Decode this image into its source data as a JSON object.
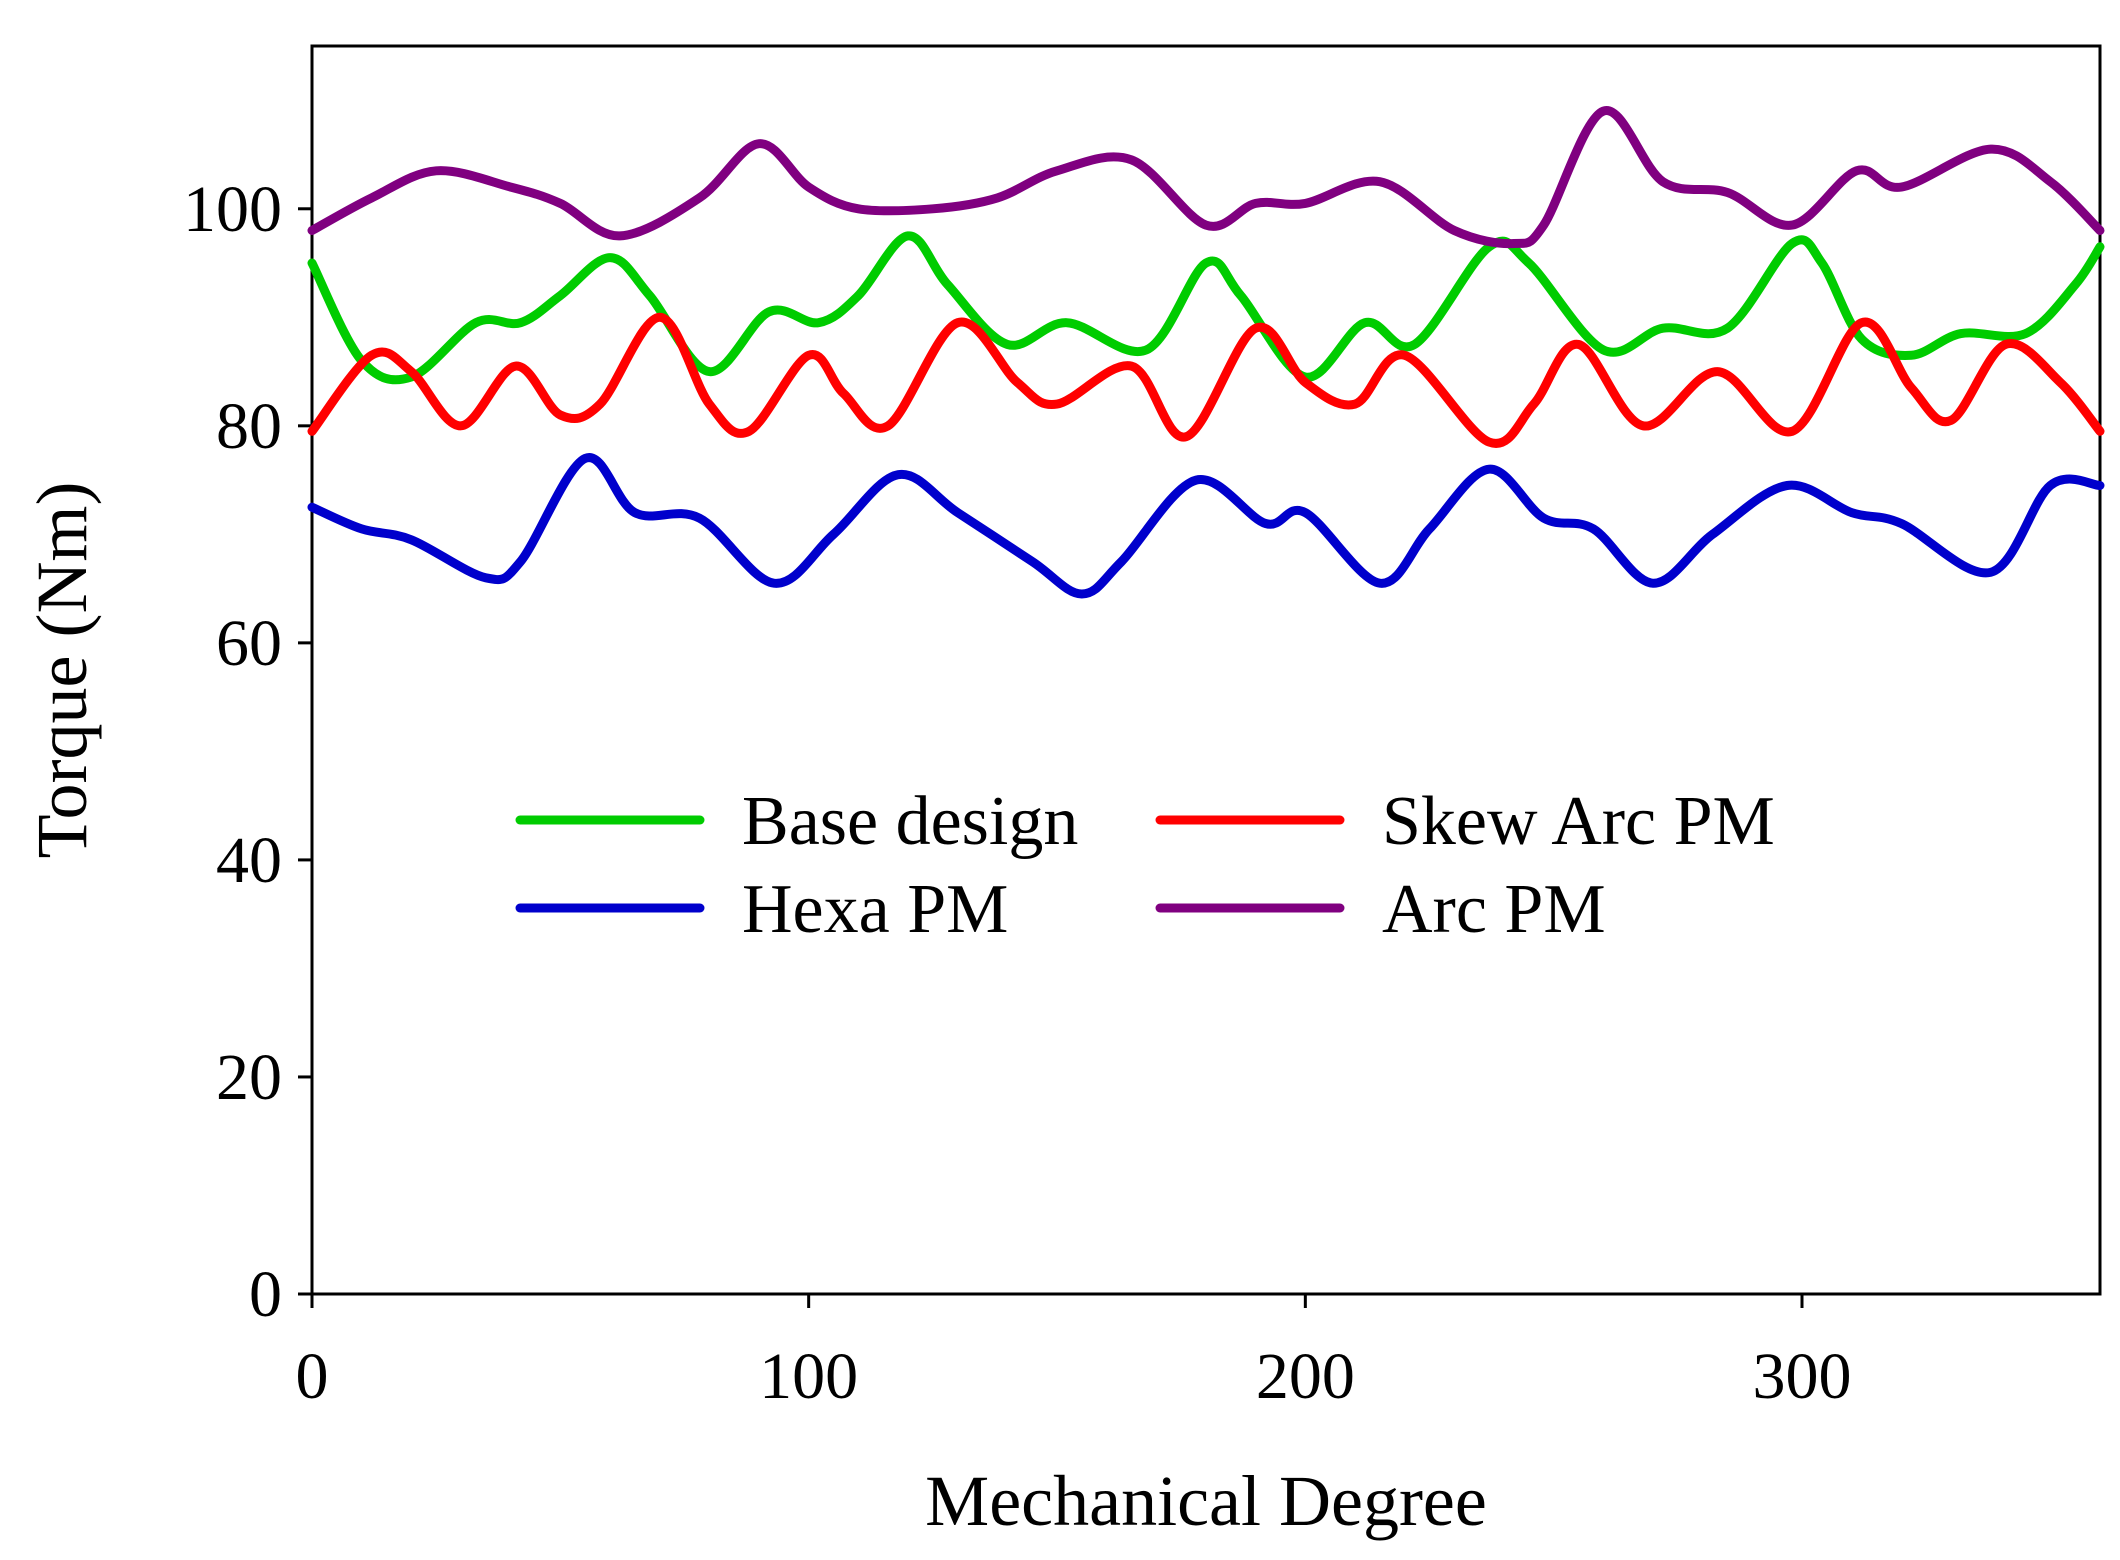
{
  "chart_data": {
    "type": "line",
    "title": "",
    "xlabel": "Mechanical Degree",
    "ylabel": "Torque (Nm)",
    "xlim": [
      0,
      360
    ],
    "ylim": [
      0,
      115
    ],
    "xticks": [
      0,
      100,
      200,
      300
    ],
    "yticks": [
      0,
      20,
      40,
      60,
      80,
      100
    ],
    "grid": false,
    "legend_position": "center",
    "series": [
      {
        "name": "Base design",
        "color": "#00cc00",
        "x": [
          0,
          10,
          20,
          33,
          42,
          50,
          60,
          68,
          80,
          92,
          102,
          110,
          120,
          128,
          140,
          152,
          168,
          180,
          187,
          200,
          212,
          222,
          237,
          245,
          260,
          272,
          285,
          298,
          304,
          312,
          322,
          332,
          345,
          355,
          360
        ],
        "y": [
          95,
          86,
          84.5,
          89.5,
          89.5,
          92,
          95.5,
          92,
          85,
          90.5,
          89.5,
          92,
          97.5,
          93,
          87.5,
          89.5,
          87,
          95,
          92,
          84.5,
          89.5,
          87.5,
          96.5,
          95,
          87,
          89,
          89,
          96.8,
          95,
          88,
          86.5,
          88.5,
          88.5,
          93,
          96.5
        ]
      },
      {
        "name": "Skew Arc PM",
        "color": "#ff0000",
        "x": [
          0,
          12,
          20,
          30,
          41,
          50,
          58,
          70,
          80,
          88,
          100,
          107,
          116,
          130,
          142,
          150,
          165,
          176,
          190,
          200,
          210,
          220,
          237,
          246,
          255,
          268,
          283,
          298,
          312,
          322,
          330,
          341,
          352,
          360
        ],
        "y": [
          79.5,
          86.5,
          85,
          80,
          85.5,
          81,
          82,
          90,
          82,
          79.5,
          86.5,
          83,
          80,
          89.5,
          84,
          82,
          85.5,
          79,
          89,
          84,
          82,
          86.5,
          78.5,
          82,
          87.5,
          80,
          85,
          79.5,
          89.5,
          83.5,
          80.5,
          87.5,
          84,
          79.5
        ]
      },
      {
        "name": "Hexa PM",
        "color": "#0000cc",
        "x": [
          0,
          10,
          20,
          35,
          42,
          55,
          65,
          78,
          93,
          105,
          118,
          130,
          145,
          155,
          163,
          178,
          192,
          200,
          215,
          225,
          237,
          248,
          258,
          270,
          282,
          297,
          310,
          320,
          338,
          350,
          360
        ],
        "y": [
          72.5,
          70.5,
          69.5,
          66,
          67.5,
          77,
          72,
          71.5,
          65.5,
          70,
          75.5,
          72,
          67.5,
          64.5,
          67.5,
          75,
          71,
          72,
          65.5,
          70.5,
          76,
          71.5,
          70.5,
          65.5,
          70,
          74.5,
          72,
          71,
          66.5,
          74.5,
          74.5
        ]
      },
      {
        "name": "Arc PM",
        "color": "#800080",
        "x": [
          0,
          12,
          25,
          40,
          50,
          62,
          78,
          90,
          100,
          110,
          125,
          138,
          150,
          165,
          180,
          190,
          200,
          215,
          230,
          242,
          248,
          260,
          272,
          285,
          298,
          311,
          320,
          338,
          350,
          360
        ],
        "y": [
          98,
          101,
          103.5,
          102,
          100.5,
          97.5,
          101,
          106,
          102,
          100,
          100,
          101,
          103.5,
          104.5,
          98.5,
          100.5,
          100.5,
          102.5,
          98,
          96.8,
          98.5,
          109,
          102.5,
          101.5,
          98.5,
          103.5,
          102,
          105.5,
          102.5,
          98
        ]
      }
    ]
  }
}
